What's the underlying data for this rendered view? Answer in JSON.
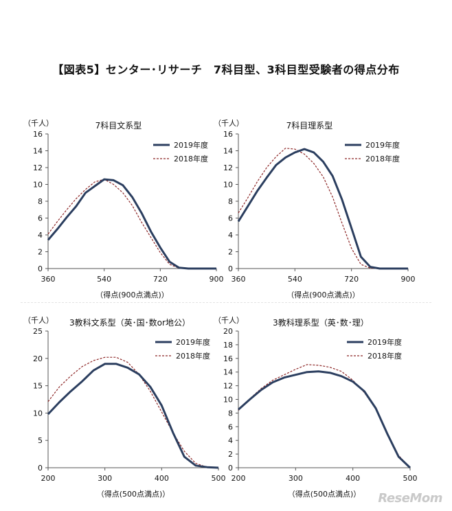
{
  "page_title": "【図表5】センター･リサーチ　7科目型、3科目型受験者の得点分布",
  "watermark": "ReseMom",
  "colors": {
    "series_2019": "#2b3e5f",
    "series_2018": "#8c2424"
  },
  "chart_data": [
    {
      "type": "line",
      "title": "7科目文系型",
      "ylabel": "（千人）",
      "xlabel": "（得点(900点満点)）",
      "xlim": [
        360,
        900
      ],
      "ylim": [
        0,
        16
      ],
      "xticks": [
        360,
        540,
        720,
        900
      ],
      "yticks": [
        0,
        2,
        4,
        6,
        8,
        10,
        12,
        14,
        16
      ],
      "grid": false,
      "legend": "top-right",
      "series": [
        {
          "name": "2019年度",
          "x": [
            360,
            390,
            420,
            450,
            480,
            510,
            540,
            570,
            600,
            630,
            660,
            690,
            720,
            750,
            780,
            810,
            840,
            870,
            900
          ],
          "y": [
            3.4,
            4.7,
            6.1,
            7.4,
            9.0,
            9.8,
            10.6,
            10.5,
            9.9,
            8.5,
            6.6,
            4.4,
            2.5,
            0.8,
            0.1,
            0,
            0,
            0,
            0
          ]
        },
        {
          "name": "2018年度",
          "x": [
            360,
            390,
            420,
            450,
            480,
            510,
            540,
            570,
            600,
            630,
            660,
            690,
            720,
            750,
            780,
            810,
            840,
            870,
            900
          ],
          "y": [
            4.1,
            5.6,
            7.0,
            8.3,
            9.4,
            10.3,
            10.6,
            10.0,
            9.0,
            7.5,
            5.5,
            3.7,
            1.9,
            0.5,
            0.05,
            0,
            0,
            0,
            0
          ]
        }
      ]
    },
    {
      "type": "line",
      "title": "7科目理系型",
      "ylabel": "（千人）",
      "xlabel": "（得点(900点満点)）",
      "xlim": [
        360,
        900
      ],
      "ylim": [
        0,
        16
      ],
      "xticks": [
        360,
        540,
        720,
        900
      ],
      "yticks": [
        0,
        2,
        4,
        6,
        8,
        10,
        12,
        14,
        16
      ],
      "grid": false,
      "legend": "top-right",
      "series": [
        {
          "name": "2019年度",
          "x": [
            360,
            390,
            420,
            450,
            480,
            510,
            540,
            570,
            600,
            630,
            660,
            690,
            720,
            750,
            780,
            810,
            840,
            870,
            900
          ],
          "y": [
            5.6,
            7.4,
            9.2,
            10.8,
            12.3,
            13.2,
            13.8,
            14.2,
            13.8,
            12.7,
            11.0,
            8.2,
            4.8,
            1.4,
            0.2,
            0,
            0,
            0,
            0
          ]
        },
        {
          "name": "2018年度",
          "x": [
            360,
            390,
            420,
            450,
            480,
            510,
            540,
            570,
            600,
            630,
            660,
            690,
            720,
            750,
            780,
            810,
            840,
            870,
            900
          ],
          "y": [
            6.6,
            8.4,
            10.3,
            12.0,
            13.3,
            14.3,
            14.2,
            13.6,
            12.5,
            10.9,
            8.5,
            5.4,
            2.4,
            0.5,
            0.05,
            0,
            0,
            0,
            0
          ]
        }
      ]
    },
    {
      "type": "line",
      "title": "3教科文系型（英･国･数or地公）",
      "ylabel": "（千人）",
      "xlabel": "（得点(500点満点)）",
      "xlim": [
        200,
        500
      ],
      "ylim": [
        0,
        25
      ],
      "xticks": [
        200,
        300,
        400,
        500
      ],
      "yticks": [
        0,
        5,
        10,
        15,
        20,
        25
      ],
      "grid": false,
      "legend": "top-right",
      "series": [
        {
          "name": "2019年度",
          "x": [
            200,
            220,
            240,
            260,
            280,
            300,
            320,
            340,
            360,
            380,
            400,
            420,
            440,
            460,
            480,
            500
          ],
          "y": [
            9.8,
            12.0,
            14.0,
            15.8,
            17.8,
            19.0,
            19.0,
            18.3,
            17.1,
            14.8,
            11.4,
            6.4,
            2.0,
            0.4,
            0.1,
            0
          ]
        },
        {
          "name": "2018年度",
          "x": [
            200,
            220,
            240,
            260,
            280,
            300,
            320,
            340,
            360,
            380,
            400,
            420,
            440,
            460,
            480,
            500
          ],
          "y": [
            12.1,
            14.8,
            16.8,
            18.5,
            19.6,
            20.2,
            20.2,
            19.3,
            17.1,
            14.0,
            10.2,
            6.4,
            3.0,
            0.8,
            0.1,
            0
          ]
        }
      ]
    },
    {
      "type": "line",
      "title": "3教科理系型（英･数･理）",
      "ylabel": "（千人）",
      "xlabel": "（得点(500点満点)）",
      "xlim": [
        200,
        500
      ],
      "ylim": [
        0,
        20
      ],
      "xticks": [
        200,
        300,
        400,
        500
      ],
      "yticks": [
        0,
        2,
        4,
        6,
        8,
        10,
        12,
        14,
        16,
        18,
        20
      ],
      "grid": false,
      "legend": "top-right",
      "series": [
        {
          "name": "2019年度",
          "x": [
            200,
            220,
            240,
            260,
            280,
            300,
            320,
            340,
            360,
            380,
            400,
            420,
            440,
            460,
            480,
            500
          ],
          "y": [
            8.5,
            10.0,
            11.4,
            12.5,
            13.2,
            13.6,
            14.0,
            14.1,
            13.9,
            13.4,
            12.6,
            11.2,
            8.7,
            5.0,
            1.6,
            0
          ]
        },
        {
          "name": "2018年度",
          "x": [
            200,
            220,
            240,
            260,
            280,
            300,
            320,
            340,
            360,
            380,
            400,
            420,
            440,
            460,
            480,
            500
          ],
          "y": [
            8.4,
            10.1,
            11.6,
            12.8,
            13.6,
            14.4,
            15.1,
            15.0,
            14.7,
            14.1,
            12.8,
            11.0,
            8.6,
            5.1,
            1.8,
            0
          ]
        }
      ]
    }
  ]
}
